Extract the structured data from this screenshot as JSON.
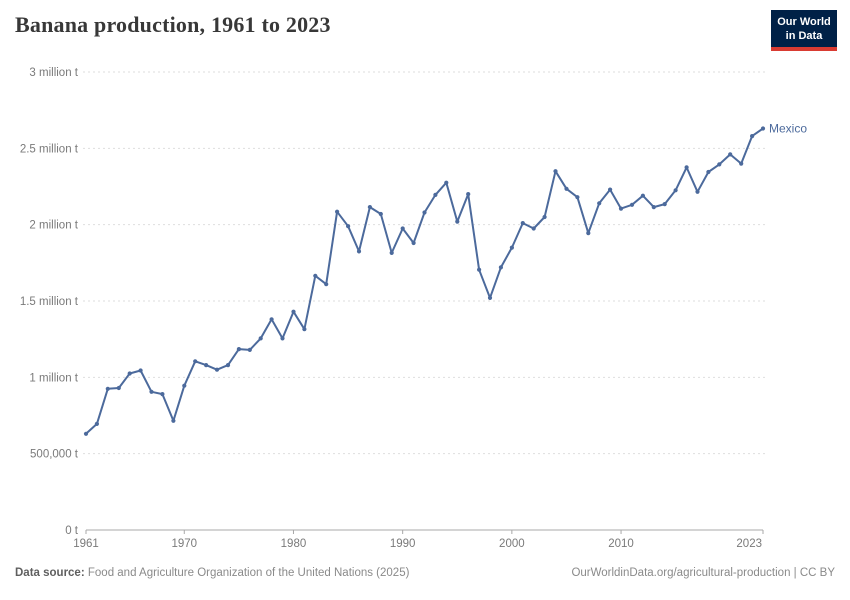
{
  "header": {
    "title": "Banana production, 1961 to 2023",
    "logo": {
      "line1": "Our World",
      "line2": "in Data"
    }
  },
  "chart_data": {
    "type": "line",
    "title": "Banana production, 1961 to 2023",
    "xlabel": "",
    "ylabel": "",
    "unit": "tonnes",
    "xlim": [
      1961,
      2023
    ],
    "ylim": [
      0,
      3000000
    ],
    "grid": "horizontal-dashed",
    "legend_position": "end-of-line",
    "x_ticks": [
      1961,
      1970,
      1980,
      1990,
      2000,
      2010,
      2023
    ],
    "y_ticks": [
      {
        "value": 0,
        "label": "0 t"
      },
      {
        "value": 500000,
        "label": "500,000 t"
      },
      {
        "value": 1000000,
        "label": "1 million t"
      },
      {
        "value": 1500000,
        "label": "1.5 million t"
      },
      {
        "value": 2000000,
        "label": "2 million t"
      },
      {
        "value": 2500000,
        "label": "2.5 million t"
      },
      {
        "value": 3000000,
        "label": "3 million t"
      }
    ],
    "x": [
      1961,
      1962,
      1963,
      1964,
      1965,
      1966,
      1967,
      1968,
      1969,
      1970,
      1971,
      1972,
      1973,
      1974,
      1975,
      1976,
      1977,
      1978,
      1979,
      1980,
      1981,
      1982,
      1983,
      1984,
      1985,
      1986,
      1987,
      1988,
      1989,
      1990,
      1991,
      1992,
      1993,
      1994,
      1995,
      1996,
      1997,
      1998,
      1999,
      2000,
      2001,
      2002,
      2003,
      2004,
      2005,
      2006,
      2007,
      2008,
      2009,
      2010,
      2011,
      2012,
      2013,
      2014,
      2015,
      2016,
      2017,
      2018,
      2019,
      2020,
      2021,
      2022,
      2023
    ],
    "series": [
      {
        "name": "Mexico",
        "color": "#4C6A9C",
        "values": [
          630000,
          695000,
          925000,
          930000,
          1025000,
          1045000,
          905000,
          890000,
          715000,
          945000,
          1105000,
          1080000,
          1050000,
          1080000,
          1185000,
          1180000,
          1255000,
          1380000,
          1255000,
          1430000,
          1315000,
          1665000,
          1610000,
          2085000,
          1990000,
          1825000,
          2115000,
          2070000,
          1815000,
          1975000,
          1880000,
          2080000,
          2195000,
          2275000,
          2020000,
          2200000,
          1705000,
          1520000,
          1720000,
          1850000,
          2010000,
          1975000,
          2050000,
          2350000,
          2235000,
          2180000,
          1945000,
          2140000,
          2230000,
          2105000,
          2130000,
          2190000,
          2115000,
          2135000,
          2225000,
          2375000,
          2215000,
          2345000,
          2395000,
          2460000,
          2400000,
          2580000,
          2630000
        ]
      }
    ]
  },
  "colors": {
    "line": "#4C6A9C",
    "series_label": "#4C6A9C",
    "grid": "#dedede",
    "axis": "#a8a8a8",
    "tick_text": "#7a7a7a",
    "title_text": "#383838",
    "logo_bg": "#002147",
    "logo_red": "#D93B32"
  },
  "footer": {
    "datasource_label": "Data source:",
    "datasource_text": "Food and Agriculture Organization of the United Nations (2025)",
    "link": "OurWorldinData.org/agricultural-production | CC BY"
  }
}
